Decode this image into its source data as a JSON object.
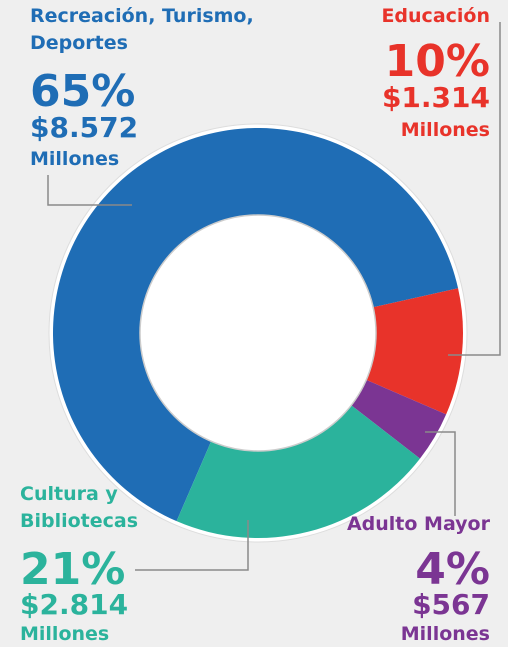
{
  "chart_data": {
    "type": "donut",
    "categories": [
      "Recreación, Turismo, Deportes",
      "Educación",
      "Adulto Mayor",
      "Cultura y Bibliotecas"
    ],
    "values": [
      65,
      10,
      4,
      21
    ],
    "value_labels": [
      "65%",
      "10%",
      "4%",
      "21%"
    ],
    "amounts": [
      "$8.572",
      "$1.314",
      "$567",
      "$2.814"
    ],
    "amount_unit": "Millones",
    "colors": [
      "#1f6db5",
      "#e8332a",
      "#7b3593",
      "#2bb39c"
    ]
  }
}
